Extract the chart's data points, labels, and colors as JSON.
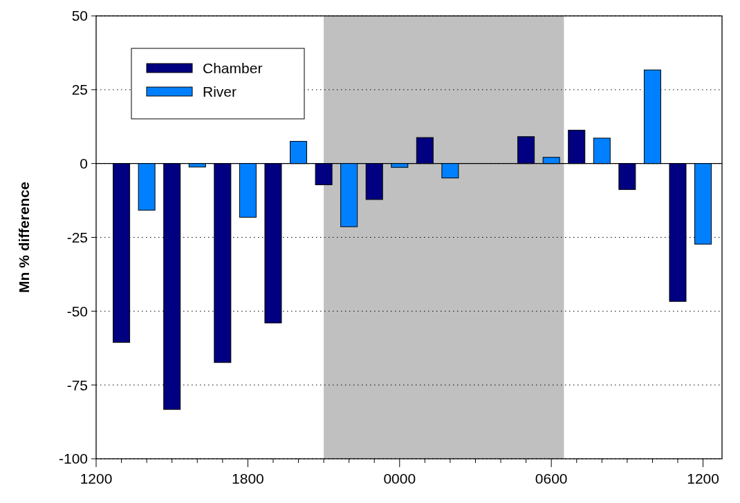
{
  "chart_data": {
    "type": "bar",
    "ylabel": "Mn % difference",
    "ylim": [
      -100,
      50
    ],
    "categories": [
      "1200",
      null,
      null,
      null,
      null,
      null,
      "1800",
      null,
      null,
      null,
      null,
      null,
      "0000",
      null,
      null,
      null,
      null,
      null,
      "0600",
      null,
      null,
      null,
      null,
      null,
      "1200"
    ],
    "yticks": [
      -100,
      -75,
      -50,
      -25,
      0,
      25,
      50
    ],
    "grid": "y",
    "legend": "top left",
    "series": [
      {
        "name": "Chamber",
        "color": "#000080",
        "values": [
          null,
          -60.6,
          null,
          -83.3,
          null,
          -67.4,
          null,
          -54,
          null,
          -7.2,
          null,
          -12.2,
          null,
          8.8,
          null,
          null,
          null,
          9.1,
          null,
          11.3,
          null,
          -8.8,
          null,
          -46.7,
          null
        ]
      },
      {
        "name": "River",
        "color": "#0080ff",
        "values": [
          null,
          null,
          -15.8,
          null,
          -1.2,
          null,
          -18.2,
          null,
          7.5,
          null,
          -21.4,
          null,
          -1.3,
          null,
          -4.9,
          null,
          null,
          null,
          2.1,
          null,
          8.6,
          null,
          31.7,
          null,
          -27.3
        ]
      }
    ],
    "ref_lines": [
      {
        "axis": "y",
        "value": 0,
        "color": "#000000",
        "line_style": "solid"
      }
    ]
  }
}
